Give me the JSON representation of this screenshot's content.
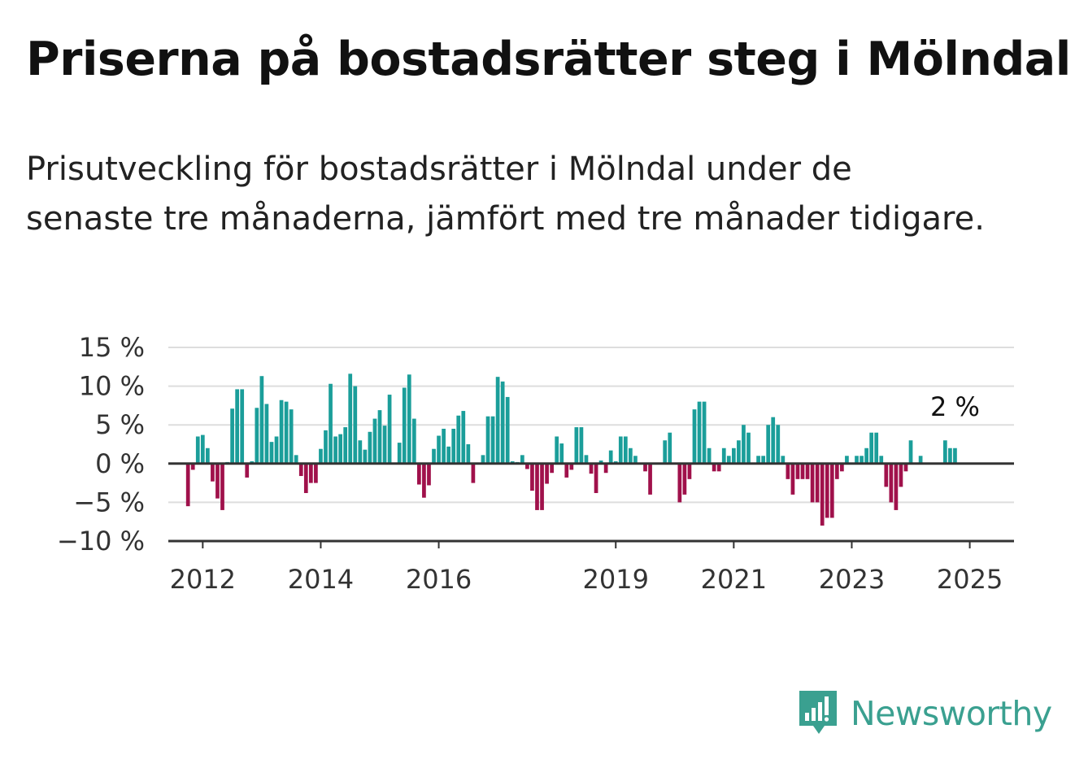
{
  "title": "Priserna på bostadsrätter steg i Mölndal",
  "subtitle": "Prisutveckling för bostadsrätter i Mölndal under de senaste tre månaderna, jämfört med tre månader tidigare.",
  "logo_text": "Newsworthy",
  "chart_data": {
    "type": "bar",
    "start_month": "2011-10",
    "month_step": 1,
    "values": [
      -5.5,
      -0.8,
      3.5,
      3.7,
      2.0,
      -2.3,
      -4.5,
      -6.0,
      0.2,
      7.1,
      9.6,
      9.6,
      -1.8,
      0.3,
      7.2,
      11.3,
      7.7,
      2.8,
      3.5,
      8.2,
      8.0,
      7.0,
      1.1,
      -1.6,
      -3.8,
      -2.5,
      -2.5,
      1.9,
      4.3,
      10.3,
      3.5,
      3.8,
      4.7,
      11.6,
      10.0,
      3.0,
      1.8,
      4.1,
      5.8,
      6.9,
      4.9,
      8.9,
      0.1,
      2.7,
      9.8,
      11.5,
      5.8,
      -2.7,
      -4.4,
      -2.8,
      1.9,
      3.6,
      4.5,
      2.2,
      4.5,
      6.2,
      6.8,
      2.5,
      -2.5,
      0.1,
      1.1,
      6.1,
      6.1,
      11.2,
      10.6,
      8.6,
      0.3,
      0.2,
      1.1,
      -0.7,
      -3.5,
      -6.0,
      -6.0,
      -2.6,
      -1.2,
      3.5,
      2.6,
      -1.8,
      -0.8,
      4.7,
      4.7,
      1.1,
      -1.3,
      -3.8,
      0.4,
      -1.2,
      1.7,
      0.3,
      3.5,
      3.5,
      2.0,
      1.0,
      0.0,
      -1.0,
      -4.0,
      0.0,
      0.0,
      3.0,
      4.0,
      0.0,
      -5.0,
      -4.0,
      -2.0,
      7.0,
      8.0,
      8.0,
      2.0,
      -1.0,
      -1.0,
      2.0,
      1.0,
      2.0,
      3.0,
      5.0,
      4.0,
      0.0,
      1.0,
      1.0,
      5.0,
      6.0,
      5.0,
      1.0,
      -2.0,
      -4.0,
      -2.0,
      -2.0,
      -2.0,
      -5.0,
      -5.0,
      -8.0,
      -7.0,
      -7.0,
      -2.0,
      -1.0,
      1.0,
      0.0,
      1.0,
      1.0,
      2.0,
      4.0,
      4.0,
      1.0,
      -3.0,
      -5.0,
      -6.0,
      -3.0,
      -1.0,
      3.0,
      0.0,
      1.0,
      0.0,
      0.0,
      0.0,
      0.0,
      3.0,
      2.0,
      2.0
    ],
    "ylim": [
      -10,
      15
    ],
    "yticks": [
      15,
      10,
      5,
      0,
      -5,
      -10
    ],
    "ytick_labels": [
      "15 %",
      "10 %",
      "5 %",
      "0 %",
      "−5 %",
      "−10 %"
    ],
    "xtick_labels": [
      {
        "label": "2012",
        "month": "2012-01"
      },
      {
        "label": "2014",
        "month": "2014-01"
      },
      {
        "label": "2016",
        "month": "2016-01"
      },
      {
        "label": "2019",
        "month": "2019-01"
      },
      {
        "label": "2021",
        "month": "2021-01"
      },
      {
        "label": "2023",
        "month": "2023-01"
      },
      {
        "label": "2025",
        "month": "2025-01"
      }
    ],
    "annotation": {
      "text": "2 %",
      "value": 2
    },
    "grid": true,
    "legend": "none",
    "colors": {
      "positive": "#1b9e9a",
      "negative": "#a0114b",
      "grid": "#dddddd",
      "axis": "#333333"
    }
  }
}
